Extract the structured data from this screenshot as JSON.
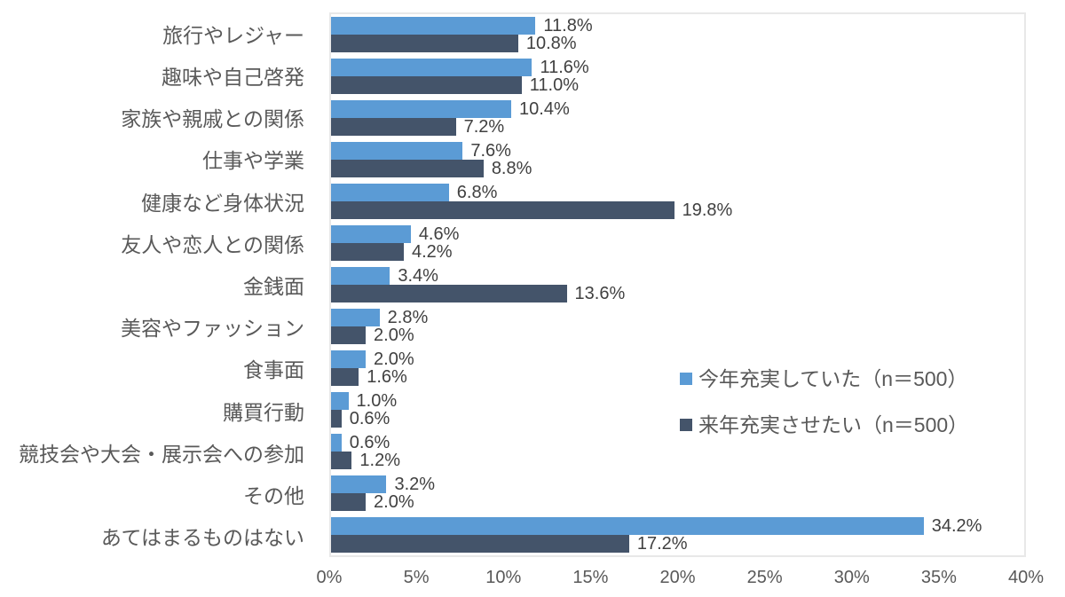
{
  "chart_data": {
    "type": "bar",
    "orientation": "horizontal",
    "title": "",
    "xlabel": "",
    "ylabel": "",
    "xlim": [
      0,
      40
    ],
    "x_ticks": [
      "0%",
      "5%",
      "10%",
      "15%",
      "20%",
      "25%",
      "30%",
      "35%",
      "40%"
    ],
    "x_tick_values": [
      0,
      5,
      10,
      15,
      20,
      25,
      30,
      35,
      40
    ],
    "grid": false,
    "legend_position": "inside-right",
    "categories": [
      "旅行やレジャー",
      "趣味や自己啓発",
      "家族や親戚との関係",
      "仕事や学業",
      "健康など身体状況",
      "友人や恋人との関係",
      "金銭面",
      "美容やファッション",
      "食事面",
      "購買行動",
      "競技会や大会・展示会への参加",
      "その他",
      "あてはまるものはない"
    ],
    "series": [
      {
        "name": "今年充実していた（n＝500）",
        "color": "#5B9BD5",
        "values": [
          11.8,
          11.6,
          10.4,
          7.6,
          6.8,
          4.6,
          3.4,
          2.8,
          2.0,
          1.0,
          0.6,
          3.2,
          34.2
        ],
        "labels": [
          "11.8%",
          "11.6%",
          "10.4%",
          "7.6%",
          "6.8%",
          "4.6%",
          "3.4%",
          "2.8%",
          "2.0%",
          "1.0%",
          "0.6%",
          "3.2%",
          "34.2%"
        ]
      },
      {
        "name": "来年充実させたい（n＝500）",
        "color": "#44546A",
        "values": [
          10.8,
          11.0,
          7.2,
          8.8,
          19.8,
          4.2,
          13.6,
          2.0,
          1.6,
          0.6,
          1.2,
          2.0,
          17.2
        ],
        "labels": [
          "10.8%",
          "11.0%",
          "7.2%",
          "8.8%",
          "19.8%",
          "4.2%",
          "13.6%",
          "2.0%",
          "1.6%",
          "0.6%",
          "1.2%",
          "2.0%",
          "17.2%"
        ]
      }
    ],
    "colors": {
      "plot_border": "#E8E8E8",
      "value_label": "#404040",
      "axis_label": "#595959"
    }
  }
}
